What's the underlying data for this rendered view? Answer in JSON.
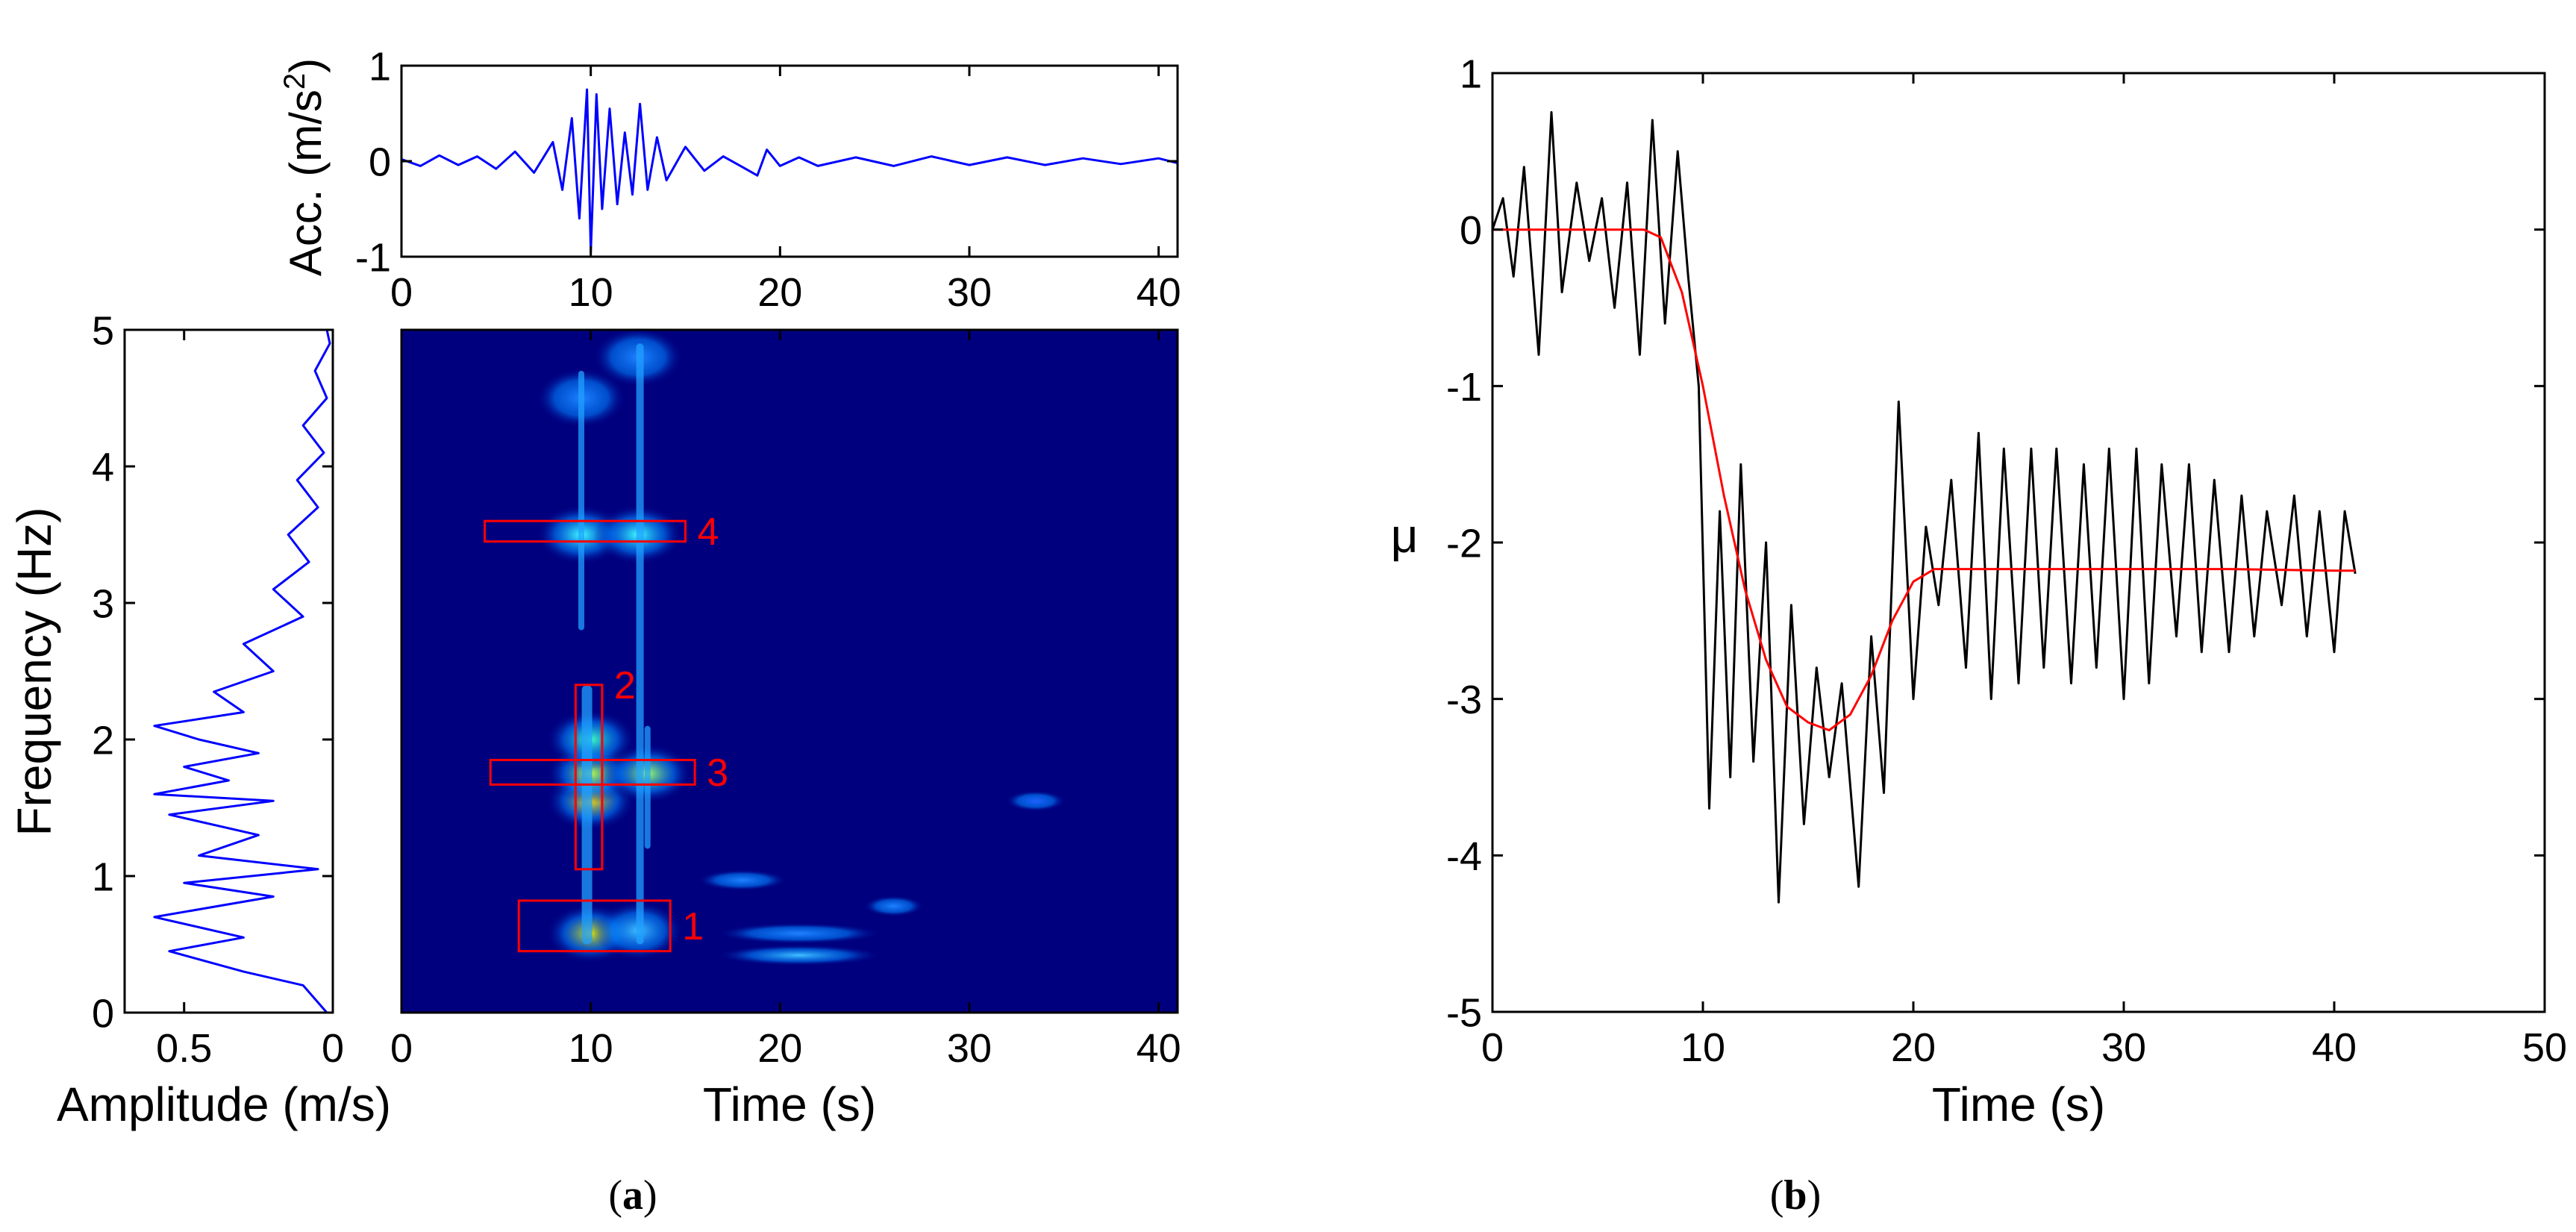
{
  "colors": {
    "signal": "#0000ff",
    "mu_raw": "#000000",
    "mu_trend": "#ff0000",
    "box": "#ff0000",
    "spectrogram_bg": "#00007f",
    "axis": "#000000"
  },
  "panel_a": {
    "caption_open": "(",
    "caption_letter": "a",
    "caption_close": ")",
    "acc_ylabel": "Acc. (m/s",
    "acc_ylabel_sup": "2",
    "acc_ylabel_close": ")",
    "amp_xlabel": "Amplitude (m/s)",
    "freq_ylabel": "Frequency (Hz)",
    "spec_xlabel": "Time (s)"
  },
  "panel_b": {
    "caption_open": "(",
    "caption_letter": "b",
    "caption_close": ")",
    "ylabel": "μ",
    "xlabel": "Time (s)"
  },
  "chart_data": [
    {
      "id": "acceleration",
      "type": "line",
      "xlabel": "",
      "ylabel": "Acc. (m/s2)",
      "xlim": [
        0,
        41
      ],
      "ylim": [
        -1,
        1
      ],
      "xticks": [
        "0",
        "10",
        "20",
        "30",
        "40"
      ],
      "yticks": [
        "-1",
        "0",
        "1"
      ],
      "series": [
        {
          "color": "#0000ff",
          "points": [
            [
              0,
              0.02
            ],
            [
              1,
              -0.05
            ],
            [
              2,
              0.06
            ],
            [
              3,
              -0.04
            ],
            [
              4,
              0.05
            ],
            [
              5,
              -0.08
            ],
            [
              6,
              0.1
            ],
            [
              7,
              -0.12
            ],
            [
              8,
              0.2
            ],
            [
              8.5,
              -0.3
            ],
            [
              9,
              0.45
            ],
            [
              9.4,
              -0.6
            ],
            [
              9.8,
              0.75
            ],
            [
              10,
              -0.95
            ],
            [
              10.3,
              0.7
            ],
            [
              10.6,
              -0.5
            ],
            [
              11,
              0.55
            ],
            [
              11.4,
              -0.45
            ],
            [
              11.8,
              0.3
            ],
            [
              12.2,
              -0.35
            ],
            [
              12.6,
              0.6
            ],
            [
              13,
              -0.3
            ],
            [
              13.5,
              0.25
            ],
            [
              14,
              -0.2
            ],
            [
              15,
              0.15
            ],
            [
              16,
              -0.1
            ],
            [
              17,
              0.05
            ],
            [
              18,
              -0.06
            ],
            [
              18.8,
              -0.15
            ],
            [
              19.3,
              0.12
            ],
            [
              20,
              -0.05
            ],
            [
              21,
              0.04
            ],
            [
              22,
              -0.05
            ],
            [
              24,
              0.04
            ],
            [
              26,
              -0.05
            ],
            [
              28,
              0.05
            ],
            [
              30,
              -0.04
            ],
            [
              32,
              0.04
            ],
            [
              34,
              -0.04
            ],
            [
              36,
              0.03
            ],
            [
              38,
              -0.03
            ],
            [
              40,
              0.03
            ],
            [
              41,
              -0.02
            ]
          ]
        }
      ]
    },
    {
      "id": "fourier_amplitude",
      "type": "line",
      "xlabel": "Amplitude (m/s)",
      "ylabel": "Frequency (Hz)",
      "xlim": [
        0.7,
        0
      ],
      "ylim": [
        0,
        5
      ],
      "xticks": [
        "0.5",
        "0"
      ],
      "yticks": [
        "0",
        "1",
        "2",
        "3",
        "4",
        "5"
      ],
      "series": [
        {
          "color": "#0000ff",
          "points": [
            [
              0.02,
              0
            ],
            [
              0.1,
              0.2
            ],
            [
              0.3,
              0.3
            ],
            [
              0.55,
              0.45
            ],
            [
              0.3,
              0.55
            ],
            [
              0.6,
              0.7
            ],
            [
              0.2,
              0.85
            ],
            [
              0.5,
              0.95
            ],
            [
              0.05,
              1.05
            ],
            [
              0.45,
              1.15
            ],
            [
              0.25,
              1.3
            ],
            [
              0.55,
              1.45
            ],
            [
              0.2,
              1.55
            ],
            [
              0.6,
              1.6
            ],
            [
              0.35,
              1.7
            ],
            [
              0.5,
              1.8
            ],
            [
              0.25,
              1.9
            ],
            [
              0.45,
              2.0
            ],
            [
              0.6,
              2.1
            ],
            [
              0.3,
              2.2
            ],
            [
              0.4,
              2.35
            ],
            [
              0.2,
              2.5
            ],
            [
              0.3,
              2.7
            ],
            [
              0.1,
              2.9
            ],
            [
              0.2,
              3.1
            ],
            [
              0.08,
              3.3
            ],
            [
              0.15,
              3.5
            ],
            [
              0.05,
              3.7
            ],
            [
              0.12,
              3.9
            ],
            [
              0.03,
              4.1
            ],
            [
              0.1,
              4.3
            ],
            [
              0.02,
              4.5
            ],
            [
              0.06,
              4.7
            ],
            [
              0.01,
              4.9
            ],
            [
              0.02,
              5.0
            ]
          ]
        }
      ]
    },
    {
      "id": "spectrogram",
      "type": "heatmap",
      "xlabel": "Time (s)",
      "ylabel": "",
      "xlim": [
        0,
        41
      ],
      "ylim": [
        0,
        5
      ],
      "xticks": [
        "0",
        "10",
        "20",
        "30",
        "40"
      ],
      "blobs": [
        {
          "t": 10,
          "f": 0.58,
          "color": "#e0e000"
        },
        {
          "t": 10,
          "f": 1.55,
          "color": "#ffdd00"
        },
        {
          "t": 10,
          "f": 1.75,
          "color": "#c0ff40"
        },
        {
          "t": 10,
          "f": 2.0,
          "color": "#40ffc0"
        },
        {
          "t": 9.5,
          "f": 3.5,
          "color": "#40ffff"
        },
        {
          "t": 12.5,
          "f": 3.5,
          "color": "#40ffff"
        },
        {
          "t": 13,
          "f": 1.75,
          "color": "#a0ff60"
        },
        {
          "t": 12.5,
          "f": 0.6,
          "color": "#40c0ff"
        },
        {
          "t": 21,
          "f": 0.42,
          "color": "#40c0ff"
        },
        {
          "t": 21,
          "f": 0.58,
          "color": "#2080ff"
        },
        {
          "t": 18,
          "f": 0.97,
          "color": "#2080ff"
        },
        {
          "t": 26,
          "f": 0.78,
          "color": "#2080ff"
        },
        {
          "t": 33.5,
          "f": 1.55,
          "color": "#2060ff"
        },
        {
          "t": 9.5,
          "f": 4.5,
          "color": "#2080ff"
        },
        {
          "t": 12.5,
          "f": 4.8,
          "color": "#2080ff"
        }
      ],
      "boxes": [
        {
          "label": "1",
          "t0": 6.2,
          "t1": 14.2,
          "f0": 0.45,
          "f1": 0.82
        },
        {
          "label": "2",
          "t0": 9.2,
          "t1": 10.6,
          "f0": 1.05,
          "f1": 2.4
        },
        {
          "label": "3",
          "t0": 4.7,
          "t1": 15.5,
          "f0": 1.67,
          "f1": 1.85
        },
        {
          "label": "4",
          "t0": 4.4,
          "t1": 15.0,
          "f0": 3.45,
          "f1": 3.6
        }
      ]
    },
    {
      "id": "mu",
      "type": "line",
      "xlabel": "Time (s)",
      "ylabel": "μ",
      "xlim": [
        0,
        50
      ],
      "ylim": [
        -5,
        1
      ],
      "xticks": [
        "0",
        "10",
        "20",
        "30",
        "40",
        "50"
      ],
      "yticks": [
        "-5",
        "-4",
        "-3",
        "-2",
        "-1",
        "0",
        "1"
      ],
      "series": [
        {
          "color": "#000000",
          "points": [
            [
              0,
              0
            ],
            [
              0.5,
              0.2
            ],
            [
              1,
              -0.3
            ],
            [
              1.5,
              0.4
            ],
            [
              2.2,
              -0.8
            ],
            [
              2.8,
              0.75
            ],
            [
              3.3,
              -0.4
            ],
            [
              4,
              0.3
            ],
            [
              4.6,
              -0.2
            ],
            [
              5.2,
              0.2
            ],
            [
              5.8,
              -0.5
            ],
            [
              6.4,
              0.3
            ],
            [
              7,
              -0.8
            ],
            [
              7.6,
              0.7
            ],
            [
              8.2,
              -0.6
            ],
            [
              8.8,
              0.5
            ],
            [
              9.3,
              -0.3
            ],
            [
              9.8,
              -1
            ],
            [
              10.3,
              -3.7
            ],
            [
              10.8,
              -1.8
            ],
            [
              11.3,
              -3.5
            ],
            [
              11.8,
              -1.5
            ],
            [
              12.4,
              -3.4
            ],
            [
              13,
              -2
            ],
            [
              13.6,
              -4.3
            ],
            [
              14.2,
              -2.4
            ],
            [
              14.8,
              -3.8
            ],
            [
              15.4,
              -2.8
            ],
            [
              16,
              -3.5
            ],
            [
              16.6,
              -2.9
            ],
            [
              17.4,
              -4.2
            ],
            [
              18,
              -2.6
            ],
            [
              18.6,
              -3.6
            ],
            [
              19.3,
              -1.1
            ],
            [
              20,
              -3
            ],
            [
              20.6,
              -1.9
            ],
            [
              21.2,
              -2.4
            ],
            [
              21.8,
              -1.6
            ],
            [
              22.5,
              -2.8
            ],
            [
              23.1,
              -1.3
            ],
            [
              23.7,
              -3
            ],
            [
              24.3,
              -1.4
            ],
            [
              25,
              -2.9
            ],
            [
              25.6,
              -1.4
            ],
            [
              26.2,
              -2.8
            ],
            [
              26.8,
              -1.4
            ],
            [
              27.5,
              -2.9
            ],
            [
              28.1,
              -1.5
            ],
            [
              28.7,
              -2.8
            ],
            [
              29.3,
              -1.4
            ],
            [
              30,
              -3
            ],
            [
              30.6,
              -1.4
            ],
            [
              31.2,
              -2.9
            ],
            [
              31.8,
              -1.5
            ],
            [
              32.5,
              -2.6
            ],
            [
              33.1,
              -1.5
            ],
            [
              33.7,
              -2.7
            ],
            [
              34.3,
              -1.6
            ],
            [
              35,
              -2.7
            ],
            [
              35.6,
              -1.7
            ],
            [
              36.2,
              -2.6
            ],
            [
              36.8,
              -1.8
            ],
            [
              37.5,
              -2.4
            ],
            [
              38.1,
              -1.7
            ],
            [
              38.7,
              -2.6
            ],
            [
              39.3,
              -1.8
            ],
            [
              40,
              -2.7
            ],
            [
              40.5,
              -1.8
            ],
            [
              41,
              -2.2
            ]
          ]
        },
        {
          "color": "#ff0000",
          "points": [
            [
              0,
              0
            ],
            [
              7.2,
              0
            ],
            [
              8,
              -0.05
            ],
            [
              9,
              -0.4
            ],
            [
              10,
              -1.0
            ],
            [
              11,
              -1.7
            ],
            [
              12,
              -2.3
            ],
            [
              13,
              -2.75
            ],
            [
              14,
              -3.05
            ],
            [
              15,
              -3.15
            ],
            [
              16,
              -3.2
            ],
            [
              17,
              -3.1
            ],
            [
              18,
              -2.85
            ],
            [
              19,
              -2.5
            ],
            [
              20,
              -2.25
            ],
            [
              21,
              -2.17
            ],
            [
              25,
              -2.17
            ],
            [
              30,
              -2.17
            ],
            [
              35,
              -2.17
            ],
            [
              40,
              -2.18
            ],
            [
              41,
              -2.18
            ]
          ]
        }
      ]
    }
  ]
}
